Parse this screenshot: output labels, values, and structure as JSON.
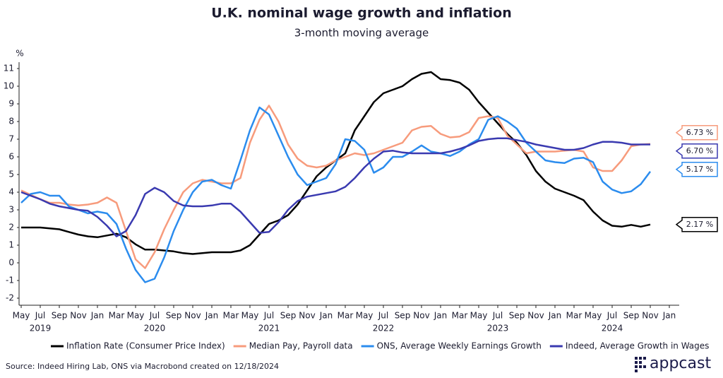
{
  "chart_data": {
    "type": "line",
    "title": "U.K. nominal wage growth and inflation",
    "subtitle": "3-month moving average",
    "y_label": "%",
    "source": "Source: Indeed Hiring Lab, ONS via Macrobond created on 12/18/2024",
    "brand": "appcast",
    "x": [
      "2019-05",
      "2019-06",
      "2019-07",
      "2019-08",
      "2019-09",
      "2019-10",
      "2019-11",
      "2019-12",
      "2020-01",
      "2020-02",
      "2020-03",
      "2020-04",
      "2020-05",
      "2020-06",
      "2020-07",
      "2020-08",
      "2020-09",
      "2020-10",
      "2020-11",
      "2020-12",
      "2021-01",
      "2021-02",
      "2021-03",
      "2021-04",
      "2021-05",
      "2021-06",
      "2021-07",
      "2021-08",
      "2021-09",
      "2021-10",
      "2021-11",
      "2021-12",
      "2022-01",
      "2022-02",
      "2022-03",
      "2022-04",
      "2022-05",
      "2022-06",
      "2022-07",
      "2022-08",
      "2022-09",
      "2022-10",
      "2022-11",
      "2022-12",
      "2023-01",
      "2023-02",
      "2023-03",
      "2023-04",
      "2023-05",
      "2023-06",
      "2023-07",
      "2023-08",
      "2023-09",
      "2023-10",
      "2023-11",
      "2023-12",
      "2024-01",
      "2024-02",
      "2024-03",
      "2024-04",
      "2024-05",
      "2024-06",
      "2024-07",
      "2024-08",
      "2024-09",
      "2024-10",
      "2024-11"
    ],
    "xlim": [
      "2019-05",
      "2025-01"
    ],
    "xticks": [
      {
        "value": "2019-05",
        "label": "May"
      },
      {
        "value": "2019-07",
        "label": "Jul"
      },
      {
        "value": "2019-09",
        "label": "Sep"
      },
      {
        "value": "2019-11",
        "label": "Nov"
      },
      {
        "value": "2020-01",
        "label": "Jan"
      },
      {
        "value": "2020-03",
        "label": "Mar"
      },
      {
        "value": "2020-05",
        "label": "May"
      },
      {
        "value": "2020-07",
        "label": "Jul"
      },
      {
        "value": "2020-09",
        "label": "Sep"
      },
      {
        "value": "2020-11",
        "label": "Nov"
      },
      {
        "value": "2021-01",
        "label": "Jan"
      },
      {
        "value": "2021-03",
        "label": "Mar"
      },
      {
        "value": "2021-05",
        "label": "May"
      },
      {
        "value": "2021-07",
        "label": "Jul"
      },
      {
        "value": "2021-09",
        "label": "Sep"
      },
      {
        "value": "2021-11",
        "label": "Nov"
      },
      {
        "value": "2022-01",
        "label": "Jan"
      },
      {
        "value": "2022-03",
        "label": "Mar"
      },
      {
        "value": "2022-05",
        "label": "May"
      },
      {
        "value": "2022-07",
        "label": "Jul"
      },
      {
        "value": "2022-09",
        "label": "Sep"
      },
      {
        "value": "2022-11",
        "label": "Nov"
      },
      {
        "value": "2023-01",
        "label": "Jan"
      },
      {
        "value": "2023-03",
        "label": "Mar"
      },
      {
        "value": "2023-05",
        "label": "May"
      },
      {
        "value": "2023-07",
        "label": "Jul"
      },
      {
        "value": "2023-09",
        "label": "Sep"
      },
      {
        "value": "2023-11",
        "label": "Nov"
      },
      {
        "value": "2024-01",
        "label": "Jan"
      },
      {
        "value": "2024-03",
        "label": "Mar"
      },
      {
        "value": "2024-05",
        "label": "May"
      },
      {
        "value": "2024-07",
        "label": "Jul"
      },
      {
        "value": "2024-09",
        "label": "Sep"
      },
      {
        "value": "2024-11",
        "label": "Nov"
      },
      {
        "value": "2025-01",
        "label": "Jan"
      }
    ],
    "year_labels": [
      {
        "value": "2019-07",
        "label": "2019"
      },
      {
        "value": "2020-07",
        "label": "2020"
      },
      {
        "value": "2021-07",
        "label": "2021"
      },
      {
        "value": "2022-07",
        "label": "2022"
      },
      {
        "value": "2023-07",
        "label": "2023"
      },
      {
        "value": "2024-07",
        "label": "2024"
      }
    ],
    "ylim": [
      -2.4,
      11.4
    ],
    "yticks": [
      -2,
      -1,
      0,
      1,
      2,
      3,
      4,
      5,
      6,
      7,
      8,
      9,
      10,
      11
    ],
    "grid": false,
    "legend": "bottom",
    "series": [
      {
        "name": "Inflation Rate (Consumer Price Index)",
        "color": "#000000",
        "end_label": "2.17 %",
        "values": [
          2.0,
          2.0,
          2.0,
          1.95,
          1.9,
          1.75,
          1.6,
          1.5,
          1.45,
          1.55,
          1.65,
          1.45,
          1.05,
          0.75,
          0.75,
          0.7,
          0.65,
          0.55,
          0.5,
          0.55,
          0.6,
          0.6,
          0.6,
          0.7,
          1.0,
          1.6,
          2.2,
          2.4,
          2.7,
          3.3,
          4.1,
          4.9,
          5.4,
          5.8,
          6.2,
          7.5,
          8.3,
          9.1,
          9.6,
          9.8,
          10.0,
          10.4,
          10.7,
          10.8,
          10.4,
          10.35,
          10.2,
          9.8,
          9.1,
          8.5,
          7.9,
          7.3,
          6.8,
          6.1,
          5.2,
          4.6,
          4.2,
          4.0,
          3.8,
          3.55,
          2.9,
          2.4,
          2.1,
          2.05,
          2.15,
          2.05,
          2.17
        ]
      },
      {
        "name": "Median Pay, Payroll data",
        "color": "#f79b7c",
        "end_label": "6.73 %",
        "values": [
          4.1,
          3.85,
          3.6,
          3.4,
          3.4,
          3.3,
          3.25,
          3.3,
          3.4,
          3.7,
          3.4,
          1.8,
          0.2,
          -0.3,
          0.6,
          1.9,
          3.0,
          4.0,
          4.5,
          4.7,
          4.6,
          4.5,
          4.5,
          4.8,
          6.8,
          8.1,
          8.9,
          8.0,
          6.7,
          5.9,
          5.5,
          5.4,
          5.5,
          5.8,
          6.0,
          6.2,
          6.1,
          6.2,
          6.4,
          6.6,
          6.8,
          7.5,
          7.7,
          7.75,
          7.3,
          7.1,
          7.15,
          7.4,
          8.2,
          8.3,
          8.2,
          7.2,
          6.7,
          6.2,
          6.3,
          6.3,
          6.3,
          6.35,
          6.4,
          6.3,
          5.4,
          5.2,
          5.2,
          5.8,
          6.6,
          6.7,
          6.73
        ]
      },
      {
        "name": "ONS, Average Weekly Earnings Growth",
        "color": "#2b8cee",
        "end_label": "5.17 %",
        "values": [
          3.4,
          3.9,
          4.0,
          3.8,
          3.8,
          3.2,
          3.0,
          2.8,
          2.9,
          2.8,
          2.2,
          0.8,
          -0.4,
          -1.1,
          -0.9,
          0.3,
          1.8,
          3.0,
          4.0,
          4.6,
          4.7,
          4.4,
          4.2,
          5.8,
          7.5,
          8.8,
          8.4,
          7.2,
          6.0,
          5.0,
          4.4,
          4.6,
          4.8,
          5.6,
          7.0,
          6.9,
          6.4,
          5.1,
          5.4,
          6.0,
          6.0,
          6.3,
          6.65,
          6.3,
          6.2,
          6.05,
          6.3,
          6.7,
          7.0,
          8.1,
          8.3,
          8.0,
          7.6,
          6.8,
          6.3,
          5.8,
          5.7,
          5.65,
          5.9,
          5.95,
          5.7,
          4.6,
          4.15,
          3.95,
          4.05,
          4.45,
          5.17
        ]
      },
      {
        "name": "Indeed, Average Growth in Wages",
        "color": "#3a3ab0",
        "end_label": "6.70 %",
        "values": [
          4.0,
          3.8,
          3.6,
          3.35,
          3.2,
          3.1,
          3.0,
          2.95,
          2.6,
          2.1,
          1.5,
          1.8,
          2.7,
          3.9,
          4.25,
          4.0,
          3.5,
          3.25,
          3.2,
          3.2,
          3.25,
          3.35,
          3.35,
          2.9,
          2.3,
          1.7,
          1.75,
          2.3,
          3.0,
          3.5,
          3.75,
          3.85,
          3.95,
          4.05,
          4.3,
          4.8,
          5.4,
          5.9,
          6.3,
          6.35,
          6.25,
          6.2,
          6.2,
          6.2,
          6.2,
          6.3,
          6.45,
          6.65,
          6.9,
          7.0,
          7.05,
          7.05,
          6.95,
          6.85,
          6.7,
          6.6,
          6.5,
          6.4,
          6.4,
          6.5,
          6.7,
          6.85,
          6.85,
          6.8,
          6.7,
          6.7,
          6.7
        ]
      }
    ]
  }
}
